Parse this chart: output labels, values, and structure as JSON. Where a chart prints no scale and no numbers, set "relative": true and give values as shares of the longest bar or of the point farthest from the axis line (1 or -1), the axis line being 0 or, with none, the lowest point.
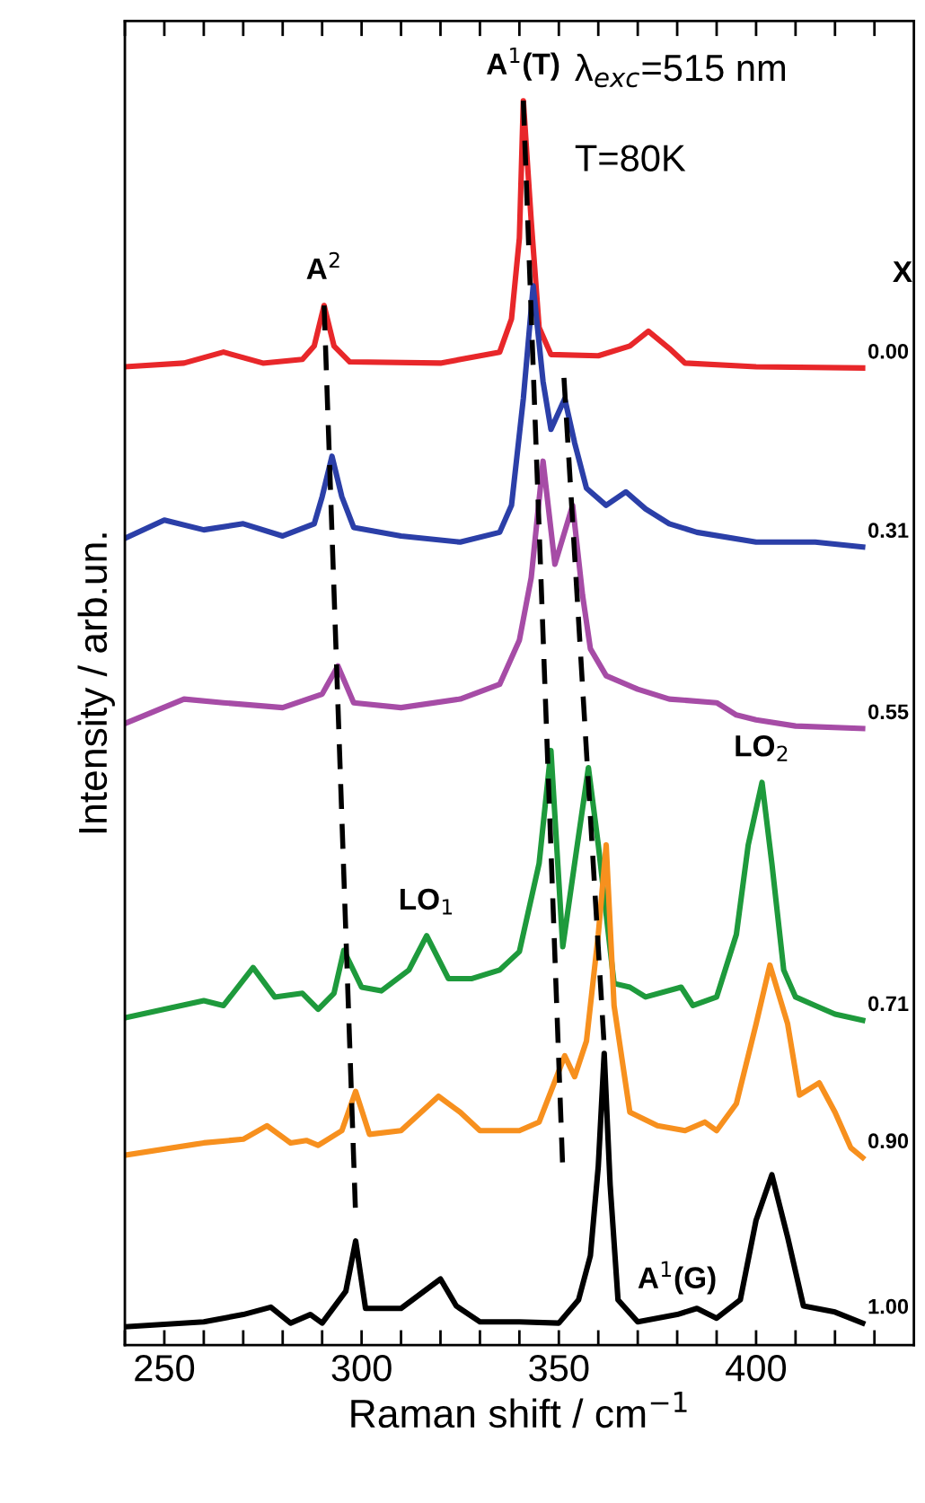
{
  "chart_data": {
    "type": "line",
    "relative": true,
    "xlabel": "Raman shift / cm$^{−1}$",
    "ylabel": "Intensity / arb.un.",
    "legend_title": "X",
    "tick_labels": "x",
    "xlim": [
      240,
      440
    ],
    "xticks": [
      {
        "value": 240,
        "label": null
      },
      250,
      {
        "value": 260,
        "label": null
      },
      {
        "value": 270,
        "label": null
      },
      {
        "value": 280,
        "label": null
      },
      {
        "value": 290,
        "label": null
      },
      300,
      {
        "value": 310,
        "label": null
      },
      {
        "value": 320,
        "label": null
      },
      {
        "value": 330,
        "label": null
      },
      {
        "value": 340,
        "label": null
      },
      350,
      {
        "value": 360,
        "label": null
      },
      {
        "value": 370,
        "label": null
      },
      {
        "value": 380,
        "label": null
      },
      {
        "value": 390,
        "label": null
      },
      400,
      {
        "value": 410,
        "label": null
      },
      {
        "value": 420,
        "label": null
      },
      {
        "value": 430,
        "label": null
      }
    ],
    "annotations": [
      "λ$_{exc}$=515 nm",
      "T=80K",
      {
        "text": "A$^{2}$",
        "x": 290.5,
        "y": 0.833
      },
      {
        "text": "A$^{1}$(T)",
        "x": 341,
        "y": 1.0
      },
      {
        "text": "LO$_{1}$",
        "x": 316.5,
        "y": 0.319
      },
      {
        "text": "LO$_{2}$",
        "x": 401.5,
        "y": 0.444
      },
      {
        "text": "A$^{1}$(G)",
        "x": 380,
        "y": 0.01
      }
    ],
    "series": [
      {
        "name": "0.00",
        "color": "#e8272a",
        "x": [
          240,
          255,
          265,
          275,
          285,
          288,
          290.5,
          293,
          297,
          320,
          335,
          338,
          340,
          341,
          343,
          345,
          348,
          360,
          368,
          372.7,
          378,
          382,
          400,
          427
        ],
        "values": [
          0.783,
          0.786,
          0.795,
          0.786,
          0.789,
          0.8,
          0.833,
          0.8,
          0.787,
          0.786,
          0.795,
          0.822,
          0.888,
          1.0,
          0.902,
          0.815,
          0.793,
          0.792,
          0.8,
          0.812,
          0.798,
          0.786,
          0.783,
          0.782
        ]
      },
      {
        "name": "0.31",
        "color": "#2b3fa8",
        "x": [
          240,
          250,
          260,
          270,
          280,
          288,
          290,
          292.5,
          295,
          298,
          310,
          325,
          335,
          338,
          341,
          343.5,
          346,
          348,
          351.5,
          354,
          357,
          362,
          367,
          372,
          378,
          385,
          400,
          415,
          427
        ],
        "values": [
          0.643,
          0.658,
          0.65,
          0.655,
          0.645,
          0.655,
          0.677,
          0.71,
          0.677,
          0.652,
          0.645,
          0.64,
          0.648,
          0.67,
          0.757,
          0.849,
          0.771,
          0.732,
          0.757,
          0.721,
          0.684,
          0.67,
          0.681,
          0.667,
          0.655,
          0.648,
          0.64,
          0.64,
          0.636
        ]
      },
      {
        "name": "0.55",
        "color": "#a64ca6",
        "x": [
          240,
          255,
          265,
          280,
          290,
          294,
          298,
          310,
          325,
          335,
          340,
          343,
          346,
          349,
          353.5,
          356,
          358,
          362,
          370,
          378,
          390,
          395,
          400,
          410,
          427
        ],
        "values": [
          0.492,
          0.512,
          0.509,
          0.505,
          0.516,
          0.539,
          0.509,
          0.505,
          0.512,
          0.524,
          0.56,
          0.611,
          0.706,
          0.622,
          0.67,
          0.597,
          0.553,
          0.531,
          0.52,
          0.512,
          0.509,
          0.499,
          0.495,
          0.49,
          0.488
        ]
      },
      {
        "name": "0.71",
        "color": "#1e9a3c",
        "x": [
          240,
          260,
          265,
          272.5,
          278,
          285,
          289,
          293,
          295.5,
          300,
          305,
          312,
          316.5,
          322,
          328,
          335,
          340,
          345,
          348,
          351,
          354,
          357.5,
          360,
          364,
          368,
          372,
          381,
          384,
          390,
          395,
          398,
          401.5,
          404,
          407,
          410,
          415,
          420,
          427
        ],
        "values": [
          0.252,
          0.266,
          0.262,
          0.293,
          0.269,
          0.272,
          0.259,
          0.272,
          0.307,
          0.277,
          0.274,
          0.291,
          0.319,
          0.284,
          0.284,
          0.291,
          0.306,
          0.378,
          0.47,
          0.31,
          0.378,
          0.456,
          0.393,
          0.28,
          0.277,
          0.269,
          0.277,
          0.262,
          0.269,
          0.32,
          0.393,
          0.444,
          0.378,
          0.291,
          0.269,
          0.262,
          0.255,
          0.25
        ]
      },
      {
        "name": "0.90",
        "color": "#f7901e",
        "x": [
          240,
          260,
          270,
          276,
          282,
          286,
          289,
          295,
          298.5,
          302,
          310,
          319.5,
          325,
          330,
          340,
          345,
          351.5,
          354,
          357,
          360,
          362,
          364,
          368,
          375,
          382,
          387,
          390,
          395,
          400,
          403.5,
          408,
          411,
          416,
          420,
          424,
          427
        ],
        "values": [
          0.14,
          0.15,
          0.153,
          0.164,
          0.15,
          0.152,
          0.148,
          0.16,
          0.192,
          0.157,
          0.16,
          0.188,
          0.175,
          0.16,
          0.16,
          0.167,
          0.221,
          0.204,
          0.233,
          0.32,
          0.393,
          0.262,
          0.175,
          0.164,
          0.16,
          0.167,
          0.16,
          0.182,
          0.247,
          0.295,
          0.247,
          0.189,
          0.199,
          0.175,
          0.146,
          0.138
        ]
      },
      {
        "name": "1.00",
        "color": "#000000",
        "x": [
          240,
          260,
          270,
          277,
          282,
          287,
          290,
          296,
          298.5,
          301,
          310,
          320,
          324,
          330,
          340,
          350,
          355,
          358,
          360,
          361.5,
          363,
          365,
          370,
          380,
          385,
          390,
          396,
          400,
          404,
          408,
          412,
          420,
          427
        ],
        "values": [
          0.0,
          0.004,
          0.01,
          0.016,
          0.003,
          0.01,
          0.003,
          0.029,
          0.07,
          0.015,
          0.015,
          0.039,
          0.017,
          0.004,
          0.004,
          0.003,
          0.022,
          0.058,
          0.131,
          0.223,
          0.116,
          0.022,
          0.004,
          0.01,
          0.015,
          0.007,
          0.022,
          0.087,
          0.124,
          0.073,
          0.017,
          0.012,
          0.003
        ]
      },
      {
        "color": "#000000",
        "line_style": "dashed",
        "x": [
          290.5,
          298.5
        ],
        "values": [
          0.833,
          0.09
        ]
      },
      {
        "color": "#000000",
        "line_style": "dashed",
        "x": [
          341,
          351
        ],
        "values": [
          1.0,
          0.128
        ]
      },
      {
        "color": "#000000",
        "line_style": "dashed",
        "x": [
          351.3,
          361.5
        ],
        "values": [
          0.774,
          0.229
        ]
      }
    ]
  }
}
